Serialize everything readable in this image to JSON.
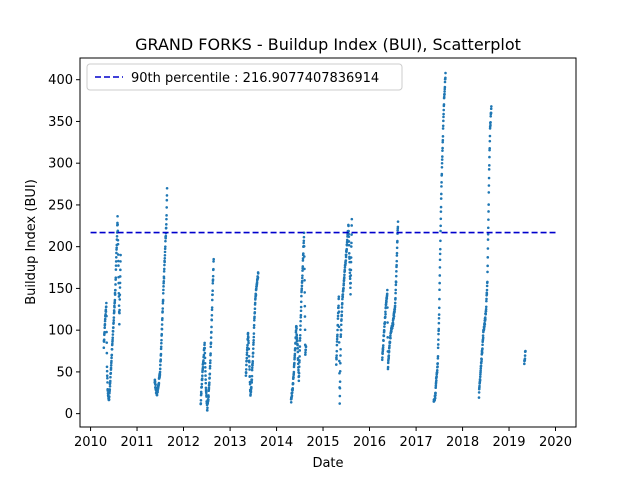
{
  "chart_data": {
    "type": "scatter",
    "title": "GRAND FORKS - Buildup Index (BUI), Scatterplot",
    "xlabel": "Date",
    "ylabel": "Buildup Index (BUI)",
    "xlim": [
      "2009-10-10",
      "2020-06-10"
    ],
    "ylim": [
      -16,
      426
    ],
    "x_ticks": [
      "2010",
      "2011",
      "2012",
      "2013",
      "2014",
      "2015",
      "2016",
      "2017",
      "2018",
      "2019",
      "2020"
    ],
    "y_ticks": [
      0,
      50,
      100,
      150,
      200,
      250,
      300,
      350,
      400
    ],
    "grid": false,
    "legend_position": "top-left",
    "colors": {
      "points": "#1f77b4",
      "reference_line": "#0000cc"
    },
    "reference_line": {
      "name": "90th percentile : 216.9077407836914",
      "y": 216.9077407836914,
      "x_start": "2010-01-01",
      "x_end": "2020-01-01",
      "style": "dashed"
    },
    "series": [
      {
        "seasons": [
          {
            "year": 2010,
            "anchors": [
              [
                "04-15",
                82
              ],
              [
                "04-28",
                118
              ],
              [
                "05-05",
                130
              ],
              [
                "05-10",
                55
              ],
              [
                "05-15",
                30
              ],
              [
                "05-25",
                15
              ],
              [
                "06-05",
                40
              ],
              [
                "06-20",
                80
              ],
              [
                "07-01",
                110
              ],
              [
                "07-15",
                150
              ],
              [
                "07-25",
                200
              ],
              [
                "08-01",
                235
              ],
              [
                "08-08",
                175
              ],
              [
                "08-15",
                110
              ],
              [
                "08-25",
                190
              ]
            ]
          },
          {
            "year": 2011,
            "anchors": [
              [
                "05-20",
                40
              ],
              [
                "06-05",
                22
              ],
              [
                "06-20",
                35
              ],
              [
                "07-01",
                50
              ],
              [
                "07-10",
                80
              ],
              [
                "07-20",
                120
              ],
              [
                "08-01",
                165
              ],
              [
                "08-10",
                200
              ],
              [
                "08-20",
                230
              ],
              [
                "08-25",
                270
              ]
            ]
          },
          {
            "year": 2012,
            "anchors": [
              [
                "05-15",
                12
              ],
              [
                "05-25",
                40
              ],
              [
                "06-05",
                65
              ],
              [
                "06-15",
                82
              ],
              [
                "06-25",
                30
              ],
              [
                "07-05",
                5
              ],
              [
                "07-15",
                20
              ],
              [
                "07-25",
                45
              ],
              [
                "08-05",
                90
              ],
              [
                "08-15",
                140
              ],
              [
                "08-25",
                185
              ]
            ]
          },
          {
            "year": 2013,
            "anchors": [
              [
                "05-05",
                45
              ],
              [
                "05-15",
                75
              ],
              [
                "05-22",
                98
              ],
              [
                "06-01",
                60
              ],
              [
                "06-10",
                20
              ],
              [
                "06-20",
                40
              ],
              [
                "07-01",
                75
              ],
              [
                "07-10",
                110
              ],
              [
                "07-20",
                140
              ],
              [
                "08-01",
                160
              ],
              [
                "08-10",
                168
              ]
            ]
          },
          {
            "year": 2014,
            "anchors": [
              [
                "04-25",
                15
              ],
              [
                "05-10",
                35
              ],
              [
                "05-25",
                70
              ],
              [
                "06-05",
                105
              ],
              [
                "06-15",
                80
              ],
              [
                "06-25",
                40
              ],
              [
                "07-05",
                90
              ],
              [
                "07-15",
                140
              ],
              [
                "07-25",
                175
              ],
              [
                "08-05",
                217
              ],
              [
                "08-15",
                70
              ],
              [
                "08-20",
                80
              ]
            ]
          },
          {
            "year": 2015,
            "anchors": [
              [
                "04-15",
                60
              ],
              [
                "04-25",
                100
              ],
              [
                "05-05",
                140
              ],
              [
                "05-12",
                10
              ],
              [
                "05-20",
                90
              ],
              [
                "06-01",
                135
              ],
              [
                "06-15",
                160
              ],
              [
                "07-01",
                190
              ],
              [
                "07-20",
                225
              ],
              [
                "08-05",
                145
              ],
              [
                "08-15",
                233
              ]
            ]
          },
          {
            "year": 2016,
            "anchors": [
              [
                "04-10",
                65
              ],
              [
                "04-25",
                100
              ],
              [
                "05-10",
                130
              ],
              [
                "05-20",
                148
              ],
              [
                "05-25",
                55
              ],
              [
                "06-05",
                80
              ],
              [
                "06-20",
                100
              ],
              [
                "07-05",
                110
              ],
              [
                "07-20",
                130
              ],
              [
                "07-28",
                160
              ],
              [
                "08-05",
                200
              ],
              [
                "08-12",
                230
              ]
            ]
          },
          {
            "year": 2017,
            "anchors": [
              [
                "05-20",
                15
              ],
              [
                "06-01",
                22
              ],
              [
                "06-10",
                45
              ],
              [
                "06-20",
                60
              ],
              [
                "07-01",
                120
              ],
              [
                "07-10",
                200
              ],
              [
                "07-20",
                280
              ],
              [
                "08-01",
                340
              ],
              [
                "08-10",
                380
              ],
              [
                "08-20",
                408
              ]
            ]
          },
          {
            "year": 2018,
            "anchors": [
              [
                "05-10",
                22
              ],
              [
                "05-20",
                45
              ],
              [
                "06-01",
                70
              ],
              [
                "06-15",
                100
              ],
              [
                "06-25",
                110
              ],
              [
                "07-05",
                125
              ],
              [
                "07-15",
                160
              ],
              [
                "07-22",
                225
              ],
              [
                "07-30",
                300
              ],
              [
                "08-05",
                340
              ],
              [
                "08-15",
                368
              ]
            ]
          },
          {
            "year": 2019,
            "anchors": [
              [
                "05-01",
                60
              ],
              [
                "05-10",
                75
              ]
            ]
          }
        ]
      }
    ]
  }
}
